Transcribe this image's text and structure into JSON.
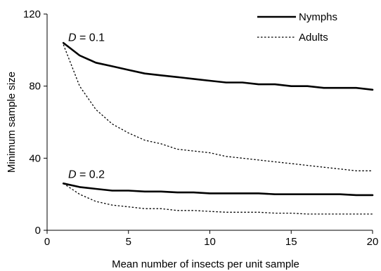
{
  "chart_data": {
    "type": "line",
    "xlabel": "Mean number of insects per unit sample",
    "ylabel": "Minimum sample size",
    "xlim": [
      0,
      20
    ],
    "ylim": [
      0,
      120
    ],
    "xticks": [
      0,
      5,
      10,
      15,
      20
    ],
    "yticks": [
      0,
      40,
      80,
      120
    ],
    "xtick_labels": [
      "0",
      "5",
      "10",
      "15",
      "20"
    ],
    "ytick_labels": [
      "0",
      "40",
      "80",
      "120"
    ],
    "grid": false,
    "legend_position": "top-right",
    "legend": [
      {
        "label": "Nymphs",
        "style": "solid"
      },
      {
        "label": "Adults",
        "style": "dotted"
      }
    ],
    "annotations": [
      {
        "var": "D",
        "rest": " = 0.1",
        "anchor_x": 1.3,
        "anchor_y": 107
      },
      {
        "var": "D",
        "rest": " = 0.2",
        "anchor_x": 1.3,
        "anchor_y": 31
      }
    ],
    "series": [
      {
        "name": "Nymphs",
        "group": "D = 0.1",
        "style": "solid",
        "x": [
          1,
          2,
          3,
          4,
          5,
          6,
          7,
          8,
          9,
          10,
          11,
          12,
          13,
          14,
          15,
          16,
          17,
          18,
          19,
          20
        ],
        "y": [
          104,
          97,
          93,
          91,
          89,
          87,
          86,
          85,
          84,
          83,
          82,
          82,
          81,
          81,
          80,
          80,
          79,
          79,
          79,
          78
        ]
      },
      {
        "name": "Adults",
        "group": "D = 0.1",
        "style": "dotted",
        "x": [
          1,
          2,
          3,
          4,
          5,
          6,
          7,
          8,
          9,
          10,
          11,
          12,
          13,
          14,
          15,
          16,
          17,
          18,
          19,
          20
        ],
        "y": [
          103,
          80,
          67,
          59,
          54,
          50,
          48,
          45,
          44,
          43,
          41,
          40,
          39,
          38,
          37,
          36,
          35,
          34,
          33,
          33
        ]
      },
      {
        "name": "Nymphs",
        "group": "D = 0.2",
        "style": "solid",
        "x": [
          1,
          2,
          3,
          4,
          5,
          6,
          7,
          8,
          9,
          10,
          11,
          12,
          13,
          14,
          15,
          16,
          17,
          18,
          19,
          20
        ],
        "y": [
          26,
          24,
          23,
          22,
          22,
          21.5,
          21.5,
          21,
          21,
          20.5,
          20.5,
          20.5,
          20.5,
          20,
          20,
          20,
          20,
          20,
          19.5,
          19.5
        ]
      },
      {
        "name": "Adults",
        "group": "D = 0.2",
        "style": "dotted",
        "x": [
          1,
          2,
          3,
          4,
          5,
          6,
          7,
          8,
          9,
          10,
          11,
          12,
          13,
          14,
          15,
          16,
          17,
          18,
          19,
          20
        ],
        "y": [
          26,
          20,
          16,
          14,
          13,
          12,
          12,
          11,
          11,
          10.5,
          10,
          10,
          10,
          9.5,
          9.5,
          9,
          9,
          9,
          9,
          9
        ]
      }
    ]
  }
}
